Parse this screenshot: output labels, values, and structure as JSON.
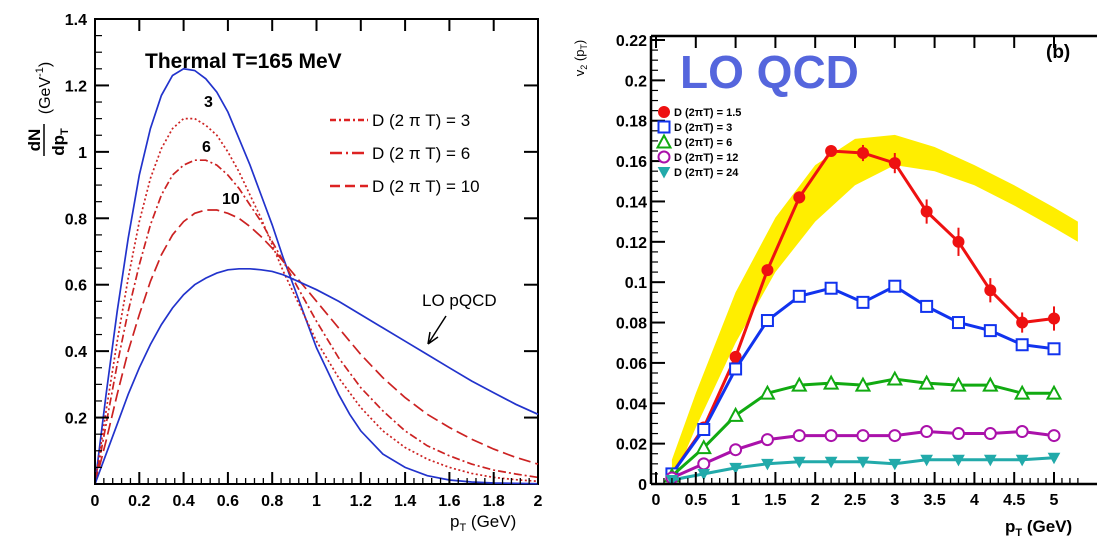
{
  "chart_data": [
    {
      "type": "line",
      "title": "Thermal T=165 MeV",
      "ylabel": "dN/dp_T (GeV^-1)",
      "ylabel_num": "dN",
      "ylabel_den": "dp",
      "ylabel_den_sub": "T",
      "ylabel_unit": "(GeV",
      "ylabel_unit_sup": "-1",
      "ylabel_unit_close": ")",
      "xlabel_main": "p",
      "xlabel_sub": "T",
      "xlabel_unit": " (GeV)",
      "xlim": [
        0,
        2
      ],
      "ylim": [
        0,
        1.4
      ],
      "x_ticks": [
        0,
        0.2,
        0.4,
        0.6,
        0.8,
        1,
        1.2,
        1.4,
        1.6,
        1.8,
        2
      ],
      "x_tick_labels": [
        "0",
        "0.2",
        "0.4",
        "0.6",
        "0.8",
        "1",
        "1.2",
        "1.4",
        "1.6",
        "1.8",
        "2"
      ],
      "y_ticks": [
        0.2,
        0.4,
        0.6,
        0.8,
        1,
        1.2,
        1.4
      ],
      "y_tick_labels": [
        "0.2",
        "0.4",
        "0.6",
        "0.8",
        "1",
        "1.2",
        "1.4"
      ],
      "legend": [
        {
          "label": "D (2 π T) = 3",
          "dash": "6,3,2,3"
        },
        {
          "label": "D (2 π T) = 6",
          "dash": "12,4,2,4"
        },
        {
          "label": "D (2 π T) = 10",
          "dash": "10,5"
        }
      ],
      "curve_labels": [
        {
          "text": "3",
          "x": 0.48,
          "y": 1.12
        },
        {
          "text": "6",
          "x": 0.52,
          "y": 1.0
        },
        {
          "text": "10",
          "x": 0.58,
          "y": 0.85
        }
      ],
      "annotation": {
        "text": "LO pQCD",
        "x": 1.48,
        "y": 0.52,
        "arrow_to": [
          1.5,
          0.42
        ]
      },
      "series": [
        {
          "style": "solid",
          "color": "#2233cc",
          "x": [
            0,
            0.05,
            0.1,
            0.15,
            0.2,
            0.25,
            0.3,
            0.35,
            0.4,
            0.45,
            0.5,
            0.55,
            0.6,
            0.65,
            0.7,
            0.75,
            0.8,
            0.85,
            0.9,
            0.95,
            1.0,
            1.05,
            1.1,
            1.15,
            1.2,
            1.3,
            1.4,
            1.5,
            1.6,
            1.7,
            1.8,
            1.9,
            2.0
          ],
          "y": [
            0,
            0.27,
            0.52,
            0.74,
            0.93,
            1.07,
            1.17,
            1.23,
            1.25,
            1.245,
            1.22,
            1.18,
            1.12,
            1.04,
            0.96,
            0.87,
            0.78,
            0.68,
            0.59,
            0.5,
            0.41,
            0.34,
            0.27,
            0.21,
            0.16,
            0.09,
            0.05,
            0.025,
            0.012,
            0.006,
            0.003,
            0.002,
            0.001
          ]
        },
        {
          "style": "dotted",
          "color": "#cc2222",
          "x": [
            0,
            0.05,
            0.1,
            0.15,
            0.2,
            0.25,
            0.3,
            0.35,
            0.4,
            0.45,
            0.5,
            0.55,
            0.6,
            0.65,
            0.7,
            0.75,
            0.8,
            0.85,
            0.9,
            0.95,
            1.0,
            1.1,
            1.2,
            1.3,
            1.4,
            1.5,
            1.6,
            1.7,
            1.8,
            1.9,
            2.0
          ],
          "y": [
            0,
            0.22,
            0.43,
            0.62,
            0.79,
            0.92,
            1.01,
            1.07,
            1.1,
            1.1,
            1.08,
            1.05,
            1.0,
            0.94,
            0.87,
            0.8,
            0.72,
            0.64,
            0.57,
            0.5,
            0.43,
            0.32,
            0.23,
            0.16,
            0.11,
            0.075,
            0.05,
            0.032,
            0.02,
            0.013,
            0.008
          ]
        },
        {
          "style": "dashdot",
          "color": "#cc2222",
          "x": [
            0,
            0.05,
            0.1,
            0.15,
            0.2,
            0.25,
            0.3,
            0.35,
            0.4,
            0.45,
            0.5,
            0.55,
            0.6,
            0.65,
            0.7,
            0.75,
            0.8,
            0.85,
            0.9,
            0.95,
            1.0,
            1.1,
            1.2,
            1.3,
            1.4,
            1.5,
            1.6,
            1.7,
            1.8,
            1.9,
            2.0
          ],
          "y": [
            0,
            0.18,
            0.36,
            0.52,
            0.66,
            0.78,
            0.87,
            0.93,
            0.96,
            0.975,
            0.975,
            0.96,
            0.93,
            0.89,
            0.84,
            0.79,
            0.73,
            0.67,
            0.61,
            0.55,
            0.49,
            0.38,
            0.29,
            0.22,
            0.16,
            0.115,
            0.085,
            0.06,
            0.042,
            0.03,
            0.02
          ]
        },
        {
          "style": "dashed",
          "color": "#cc2222",
          "x": [
            0,
            0.05,
            0.1,
            0.15,
            0.2,
            0.25,
            0.3,
            0.35,
            0.4,
            0.45,
            0.5,
            0.55,
            0.6,
            0.65,
            0.7,
            0.75,
            0.8,
            0.85,
            0.9,
            0.95,
            1.0,
            1.1,
            1.2,
            1.3,
            1.4,
            1.5,
            1.6,
            1.7,
            1.8,
            1.9,
            2.0
          ],
          "y": [
            0,
            0.13,
            0.27,
            0.4,
            0.51,
            0.61,
            0.69,
            0.75,
            0.79,
            0.815,
            0.825,
            0.825,
            0.815,
            0.8,
            0.775,
            0.745,
            0.71,
            0.67,
            0.63,
            0.59,
            0.55,
            0.47,
            0.39,
            0.32,
            0.26,
            0.21,
            0.17,
            0.135,
            0.105,
            0.08,
            0.06
          ]
        },
        {
          "style": "solid",
          "color": "#2233cc",
          "x": [
            0,
            0.05,
            0.1,
            0.15,
            0.2,
            0.25,
            0.3,
            0.35,
            0.4,
            0.45,
            0.5,
            0.55,
            0.6,
            0.65,
            0.7,
            0.75,
            0.8,
            0.85,
            0.9,
            0.95,
            1.0,
            1.1,
            1.2,
            1.3,
            1.4,
            1.5,
            1.6,
            1.7,
            1.8,
            1.9,
            2.0
          ],
          "y": [
            0,
            0.09,
            0.18,
            0.27,
            0.35,
            0.42,
            0.48,
            0.53,
            0.57,
            0.6,
            0.62,
            0.635,
            0.645,
            0.648,
            0.648,
            0.645,
            0.64,
            0.63,
            0.615,
            0.6,
            0.585,
            0.55,
            0.51,
            0.47,
            0.43,
            0.39,
            0.35,
            0.31,
            0.275,
            0.24,
            0.21
          ]
        }
      ]
    },
    {
      "type": "line",
      "title": "LO QCD",
      "panel_label": "(b)",
      "ylabel_main": "v",
      "ylabel_sub": "2",
      "ylabel_rest": " (p",
      "ylabel_rest_sub": "T",
      "ylabel_close": ")",
      "xlabel_main": "p",
      "xlabel_sub": "T",
      "xlabel_unit": " (GeV)",
      "xlim": [
        0,
        5.3
      ],
      "ylim": [
        0,
        0.22
      ],
      "x_ticks": [
        0,
        0.5,
        1,
        1.5,
        2,
        2.5,
        3,
        3.5,
        4,
        4.5,
        5
      ],
      "x_tick_labels": [
        "0",
        "0.5",
        "1",
        "1.5",
        "2",
        "2.5",
        "3",
        "3.5",
        "4",
        "4.5",
        "5"
      ],
      "y_ticks": [
        0,
        0.02,
        0.04,
        0.06,
        0.08,
        0.1,
        0.12,
        0.14,
        0.16,
        0.18,
        0.2,
        0.22
      ],
      "y_tick_labels": [
        "0",
        "0.02",
        "0.04",
        "0.06",
        "0.08",
        "0.1",
        "0.12",
        "0.14",
        "0.16",
        "0.18",
        "0.2",
        "0.22"
      ],
      "band": {
        "color": "#ffee00",
        "x": [
          0.2,
          0.5,
          1.0,
          1.5,
          2.0,
          2.5,
          3.0,
          3.5,
          4.0,
          4.5,
          5.0,
          5.3
        ],
        "upper": [
          0.012,
          0.045,
          0.095,
          0.132,
          0.158,
          0.171,
          0.173,
          0.167,
          0.158,
          0.148,
          0.137,
          0.13
        ],
        "lower": [
          0.0,
          0.028,
          0.07,
          0.105,
          0.13,
          0.148,
          0.158,
          0.155,
          0.148,
          0.138,
          0.127,
          0.12
        ]
      },
      "series": [
        {
          "name": "D (2πT) = 1.5",
          "marker": "circle-filled",
          "color": "#ee1111",
          "x": [
            0.2,
            0.6,
            1.0,
            1.4,
            1.8,
            2.2,
            2.6,
            3.0,
            3.4,
            3.8,
            4.2,
            4.6,
            5.0
          ],
          "y": [
            0.005,
            0.028,
            0.063,
            0.106,
            0.142,
            0.165,
            0.164,
            0.159,
            0.135,
            0.12,
            0.096,
            0.08,
            0.082
          ],
          "err": [
            0,
            0,
            0,
            0.002,
            0.003,
            0.002,
            0.004,
            0.005,
            0.006,
            0.007,
            0.006,
            0.005,
            0.006
          ]
        },
        {
          "name": "D (2πT) = 3",
          "marker": "square-open",
          "color": "#1133ee",
          "x": [
            0.2,
            0.6,
            1.0,
            1.4,
            1.8,
            2.2,
            2.6,
            3.0,
            3.4,
            3.8,
            4.2,
            4.6,
            5.0
          ],
          "y": [
            0.005,
            0.027,
            0.057,
            0.081,
            0.093,
            0.097,
            0.09,
            0.098,
            0.088,
            0.08,
            0.076,
            0.069,
            0.067
          ],
          "err": [
            0,
            0,
            0,
            0,
            0,
            0,
            0,
            0,
            0,
            0,
            0,
            0,
            0
          ]
        },
        {
          "name": "D (2πT) = 6",
          "marker": "triangle-open",
          "color": "#11aa11",
          "x": [
            0.2,
            0.6,
            1.0,
            1.4,
            1.8,
            2.2,
            2.6,
            3.0,
            3.4,
            3.8,
            4.2,
            4.6,
            5.0
          ],
          "y": [
            0.004,
            0.018,
            0.034,
            0.045,
            0.049,
            0.05,
            0.049,
            0.052,
            0.05,
            0.049,
            0.049,
            0.045,
            0.045
          ],
          "err": [
            0,
            0,
            0,
            0,
            0,
            0,
            0,
            0,
            0,
            0,
            0,
            0,
            0
          ]
        },
        {
          "name": "D (2πT) = 12",
          "marker": "circle-open",
          "color": "#aa11aa",
          "x": [
            0.2,
            0.6,
            1.0,
            1.4,
            1.8,
            2.2,
            2.6,
            3.0,
            3.4,
            3.8,
            4.2,
            4.6,
            5.0
          ],
          "y": [
            0.003,
            0.01,
            0.017,
            0.022,
            0.024,
            0.024,
            0.024,
            0.024,
            0.026,
            0.025,
            0.025,
            0.026,
            0.024
          ],
          "err": [
            0,
            0,
            0,
            0,
            0,
            0,
            0,
            0,
            0,
            0,
            0,
            0,
            0
          ]
        },
        {
          "name": "D (2πT) = 24",
          "marker": "triangle-down-filled",
          "color": "#22aaaa",
          "x": [
            0.2,
            0.6,
            1.0,
            1.4,
            1.8,
            2.2,
            2.6,
            3.0,
            3.4,
            3.8,
            4.2,
            4.6,
            5.0
          ],
          "y": [
            0.002,
            0.005,
            0.008,
            0.01,
            0.011,
            0.011,
            0.011,
            0.01,
            0.012,
            0.012,
            0.012,
            0.012,
            0.013
          ],
          "err": [
            0,
            0,
            0,
            0,
            0,
            0,
            0,
            0,
            0,
            0,
            0,
            0,
            0
          ]
        }
      ]
    }
  ]
}
